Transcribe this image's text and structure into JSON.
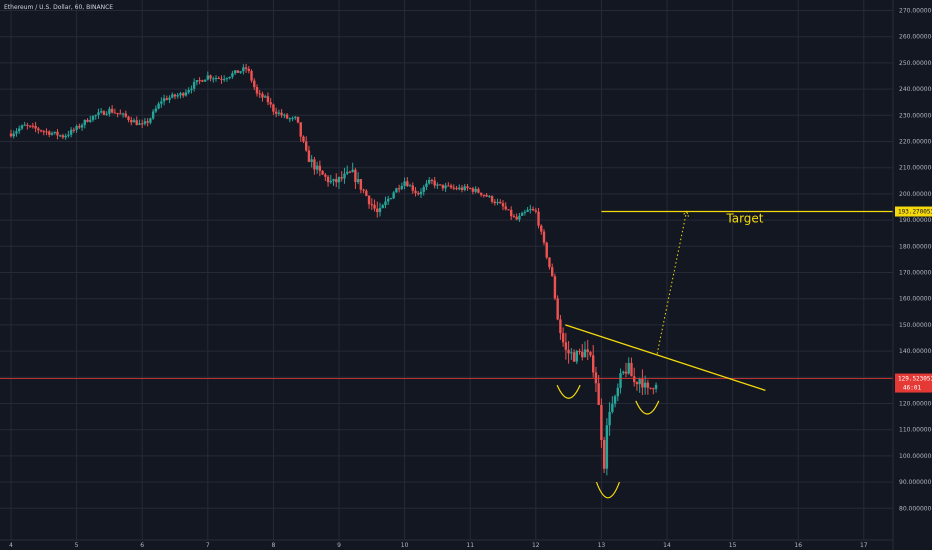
{
  "header": {
    "symbol_title": "Ethereum / U.S. Dollar, 60, BINANCE"
  },
  "colors": {
    "background": "#131722",
    "grid": "#262a37",
    "up": "#26a69a",
    "down": "#ef5350",
    "drawing": "#f5d90a",
    "price_line": "#e53935",
    "axis_text": "#b2b5be"
  },
  "chart_data": {
    "type": "candlestick",
    "title": "",
    "xlabel": "",
    "ylabel": "",
    "x_ticks": [
      "4",
      "5",
      "6",
      "7",
      "8",
      "9",
      "10",
      "11",
      "12",
      "13",
      "14",
      "15",
      "16",
      "17"
    ],
    "y_ticks": [
      "80.000000",
      "90.000000",
      "100.000000",
      "110.000000",
      "120.000000",
      "130.000000",
      "140.000000",
      "150.000000",
      "160.000000",
      "170.000000",
      "180.000000",
      "190.000000",
      "200.000000",
      "210.000000",
      "220.000000",
      "230.000000",
      "240.000000",
      "250.000000",
      "260.000000",
      "270.000000"
    ],
    "ylim": [
      70,
      275
    ],
    "xlim": [
      4,
      17.3
    ],
    "current_price": {
      "value": 129.523,
      "label": "129.523053",
      "countdown": "46:01"
    },
    "target": {
      "value": 193.27,
      "label": "193.270053",
      "text": "Target",
      "x_start": 13.0,
      "x_end": 17.3
    },
    "trendline": {
      "x1": 12.45,
      "y1": 150,
      "x2": 15.5,
      "y2": 125
    },
    "projection": {
      "x1": 13.85,
      "y1": 139,
      "x2": 14.3,
      "y2": 193.5
    },
    "arcs": [
      {
        "x": 12.5,
        "y": 127,
        "width": 0.35,
        "depth": 5
      },
      {
        "x": 13.1,
        "y": 90,
        "width": 0.35,
        "depth": 6
      },
      {
        "x": 13.7,
        "y": 121,
        "width": 0.35,
        "depth": 5
      }
    ],
    "price_path": [
      [
        4.0,
        223
      ],
      [
        4.2,
        226
      ],
      [
        4.5,
        224
      ],
      [
        4.8,
        222
      ],
      [
        5.0,
        225
      ],
      [
        5.2,
        229
      ],
      [
        5.5,
        232
      ],
      [
        5.7,
        230
      ],
      [
        6.0,
        226
      ],
      [
        6.1,
        228
      ],
      [
        6.3,
        236
      ],
      [
        6.6,
        238
      ],
      [
        6.8,
        242
      ],
      [
        7.0,
        245
      ],
      [
        7.2,
        244
      ],
      [
        7.4,
        246
      ],
      [
        7.6,
        248
      ],
      [
        7.75,
        238
      ],
      [
        7.9,
        236
      ],
      [
        8.0,
        232
      ],
      [
        8.2,
        229
      ],
      [
        8.35,
        228
      ],
      [
        8.5,
        215
      ],
      [
        8.7,
        208
      ],
      [
        8.9,
        204
      ],
      [
        9.2,
        208
      ],
      [
        9.4,
        200
      ],
      [
        9.6,
        192
      ],
      [
        9.8,
        200
      ],
      [
        10.0,
        205
      ],
      [
        10.2,
        200
      ],
      [
        10.4,
        205
      ],
      [
        10.5,
        203
      ],
      [
        10.8,
        202
      ],
      [
        11.0,
        202
      ],
      [
        11.2,
        200
      ],
      [
        11.5,
        195
      ],
      [
        11.7,
        190
      ],
      [
        11.9,
        194
      ],
      [
        12.0,
        193
      ],
      [
        12.1,
        183
      ],
      [
        12.25,
        168
      ],
      [
        12.35,
        150
      ],
      [
        12.45,
        140
      ],
      [
        12.6,
        138
      ],
      [
        12.75,
        140
      ],
      [
        12.9,
        133
      ],
      [
        13.0,
        108
      ],
      [
        13.05,
        95
      ],
      [
        13.1,
        118
      ],
      [
        13.2,
        120
      ],
      [
        13.3,
        130
      ],
      [
        13.4,
        134
      ],
      [
        13.5,
        128
      ],
      [
        13.6,
        130
      ],
      [
        13.7,
        124
      ],
      [
        13.8,
        128
      ],
      [
        13.85,
        129.5
      ]
    ]
  }
}
